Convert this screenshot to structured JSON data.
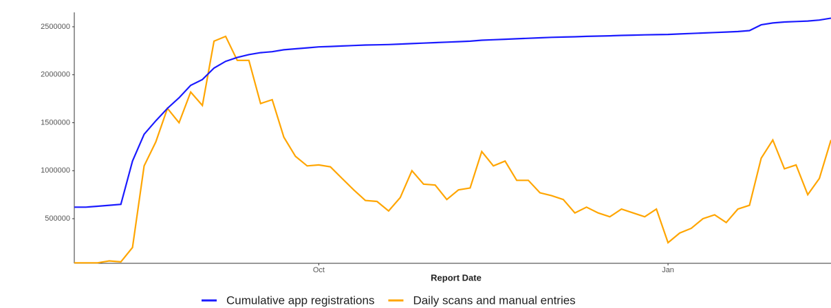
{
  "chart_data": {
    "type": "line",
    "xlabel": "Report Date",
    "categories": [
      null,
      null,
      null,
      null,
      null,
      null,
      null,
      null,
      null,
      null,
      null,
      null,
      null,
      null,
      null,
      null,
      null,
      null,
      null,
      null,
      null,
      "Oct",
      null,
      null,
      null,
      null,
      null,
      null,
      null,
      null,
      null,
      null,
      null,
      null,
      null,
      null,
      null,
      null,
      null,
      null,
      null,
      null,
      null,
      null,
      null,
      null,
      null,
      null,
      null,
      null,
      null,
      "Jan",
      null,
      null,
      null,
      null,
      null,
      null,
      null,
      null,
      null,
      null,
      null,
      null,
      null,
      null
    ],
    "series": [
      {
        "name": "Cumulative app registrations",
        "color": "#1a1aff",
        "values": [
          620000,
          620000,
          630000,
          640000,
          650000,
          1100000,
          1380000,
          1520000,
          1650000,
          1760000,
          1890000,
          1950000,
          2070000,
          2140000,
          2180000,
          2210000,
          2230000,
          2240000,
          2260000,
          2270000,
          2280000,
          2290000,
          2295000,
          2300000,
          2305000,
          2310000,
          2312000,
          2315000,
          2320000,
          2325000,
          2330000,
          2335000,
          2340000,
          2345000,
          2350000,
          2360000,
          2365000,
          2370000,
          2375000,
          2380000,
          2385000,
          2390000,
          2393000,
          2396000,
          2400000,
          2403000,
          2406000,
          2410000,
          2413000,
          2416000,
          2418000,
          2420000,
          2425000,
          2430000,
          2435000,
          2440000,
          2445000,
          2450000,
          2460000,
          2520000,
          2540000,
          2550000,
          2555000,
          2560000,
          2570000,
          2590000
        ]
      },
      {
        "name": "Daily scans and manual entries",
        "color": "#ffa500",
        "values": [
          40000,
          40000,
          40000,
          60000,
          50000,
          200000,
          1050000,
          1300000,
          1650000,
          1500000,
          1820000,
          1680000,
          2350000,
          2400000,
          2150000,
          2150000,
          1700000,
          1740000,
          1350000,
          1150000,
          1050000,
          1060000,
          1040000,
          920000,
          800000,
          690000,
          680000,
          580000,
          720000,
          1000000,
          860000,
          850000,
          700000,
          800000,
          820000,
          1200000,
          1050000,
          1100000,
          900000,
          900000,
          770000,
          740000,
          700000,
          560000,
          620000,
          560000,
          520000,
          600000,
          560000,
          520000,
          600000,
          250000,
          350000,
          400000,
          500000,
          540000,
          460000,
          600000,
          640000,
          1130000,
          1320000,
          1020000,
          1060000,
          750000,
          920000,
          1320000
        ]
      }
    ],
    "ylim": [
      35000,
      2650000
    ],
    "yticks": [
      500000,
      1000000,
      1500000,
      2000000,
      2500000
    ],
    "legend": "bottom"
  }
}
